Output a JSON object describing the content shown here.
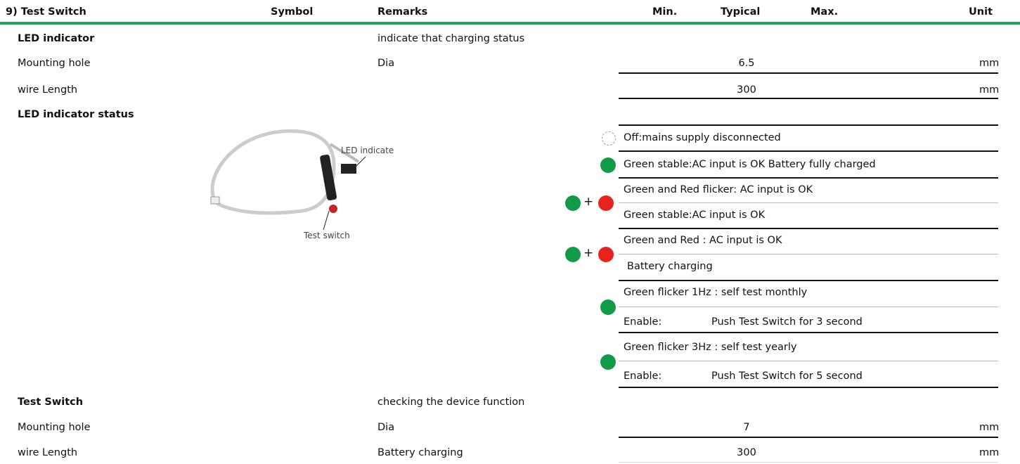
{
  "header": {
    "title": "9) Test Switch",
    "columns": [
      "Symbol",
      "Remarks",
      "Min.",
      "Typical",
      "Max.",
      "Unit"
    ]
  },
  "rows": [
    {
      "label": "LED indicator",
      "remarks": "indicate that charging status"
    },
    {
      "label": "Mounting hole",
      "remarks": "Dia",
      "typical": "6.5",
      "unit": "mm"
    },
    {
      "label": "wire Length",
      "typical": "300",
      "unit": "mm"
    },
    {
      "label": "LED indicator status"
    },
    {
      "label": "Test Switch",
      "remarks": "checking the device function"
    },
    {
      "label": "Mounting hole",
      "remarks": "Dia",
      "typical": "7",
      "unit": "mm"
    },
    {
      "label": "wire Length",
      "remarks": "Battery charging",
      "typical": "300",
      "unit": "mm"
    }
  ],
  "image_labels": [
    "LED indicate",
    "Test switch"
  ],
  "status": [
    {
      "lines": [
        "Off:mains supply disconnected"
      ]
    },
    {
      "lines": [
        "Green stable:AC input is OK Battery fully charged"
      ]
    },
    {
      "joiner": "+",
      "lines": [
        "Green and Red flicker: AC input is OK",
        "Green stable:AC input is OK"
      ]
    },
    {
      "joiner": "+",
      "lines": [
        "Green and Red : AC input is OK",
        "Battery charging"
      ]
    },
    {
      "lines": [
        "Green flicker 1Hz : self test monthly"
      ],
      "enable": {
        "label": "Enable:",
        "action": "Push Test Switch for 3 second"
      }
    },
    {
      "lines": [
        "Green flicker 3Hz : self test yearly"
      ],
      "enable": {
        "label": "Enable:",
        "action": "Push Test Switch for 5 second"
      }
    }
  ]
}
